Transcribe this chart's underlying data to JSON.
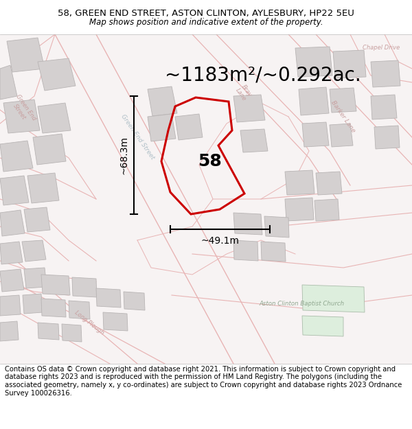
{
  "title_line1": "58, GREEN END STREET, ASTON CLINTON, AYLESBURY, HP22 5EU",
  "title_line2": "Map shows position and indicative extent of the property.",
  "area_text": "~1183m²/~0.292ac.",
  "number_label": "58",
  "dim_width": "~49.1m",
  "dim_height": "~68.3m",
  "footer_text": "Contains OS data © Crown copyright and database right 2021. This information is subject to Crown copyright and database rights 2023 and is reproduced with the permission of HM Land Registry. The polygons (including the associated geometry, namely x, y co-ordinates) are subject to Crown copyright and database rights 2023 Ordnance Survey 100026316.",
  "bg_color": "#f7f3f3",
  "property_color": "#cc0000",
  "title_fontsize": 9.5,
  "subtitle_fontsize": 8.5,
  "area_fontsize": 20,
  "number_fontsize": 18,
  "dim_fontsize": 10,
  "footer_fontsize": 7.2,
  "road_outline_color": "#e8b4b4",
  "building_color": "#d4d0d0",
  "building_edge_color": "#b8b4b4",
  "road_label_color": "#c8a0a0",
  "church_label_color": "#90a890",
  "church_bg_color": "#ddeedd"
}
